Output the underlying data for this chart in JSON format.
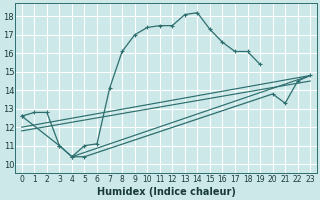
{
  "bg_color": "#cce8e8",
  "grid_color": "#ffffff",
  "line_color": "#2d6e6e",
  "xlabel": "Humidex (Indice chaleur)",
  "xlim": [
    -0.5,
    23.5
  ],
  "ylim": [
    9.5,
    18.7
  ],
  "xticks": [
    0,
    1,
    2,
    3,
    4,
    5,
    6,
    7,
    8,
    9,
    10,
    11,
    12,
    13,
    14,
    15,
    16,
    17,
    18,
    19,
    20,
    21,
    22,
    23
  ],
  "yticks": [
    10,
    11,
    12,
    13,
    14,
    15,
    16,
    17,
    18
  ],
  "curve1_x": [
    0,
    1,
    2,
    3,
    4,
    5,
    6,
    7,
    8,
    9,
    10,
    11,
    12,
    13,
    14,
    15,
    16,
    17,
    18,
    19
  ],
  "curve1_y": [
    12.6,
    12.8,
    12.8,
    11.0,
    10.4,
    11.0,
    11.1,
    14.1,
    16.1,
    17.0,
    17.4,
    17.5,
    17.5,
    18.1,
    18.2,
    17.3,
    16.6,
    16.1,
    16.1,
    15.4
  ],
  "curve2_x": [
    0,
    3,
    4,
    5,
    20,
    21,
    22,
    23
  ],
  "curve2_y": [
    12.6,
    11.0,
    10.4,
    10.4,
    13.8,
    13.3,
    14.5,
    14.8
  ],
  "line1_x": [
    0,
    23
  ],
  "line1_y": [
    12.0,
    14.8
  ],
  "line2_x": [
    0,
    23
  ],
  "line2_y": [
    11.8,
    14.5
  ],
  "line3_x": [
    4,
    23
  ],
  "line3_y": [
    10.4,
    14.8
  ]
}
